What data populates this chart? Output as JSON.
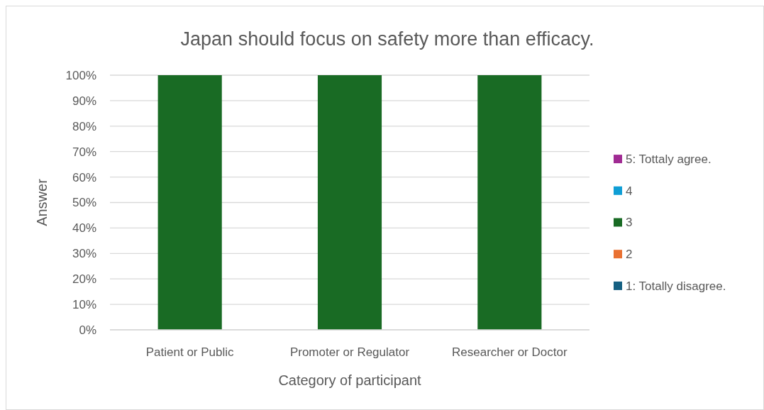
{
  "chart_data": {
    "type": "bar",
    "title": "Japan should focus on safety more than efficacy.",
    "xlabel": "Category of participant",
    "ylabel": "Answer",
    "categories": [
      "Patient or Public",
      "Promoter or Regulator",
      "Researcher or Doctor"
    ],
    "series": [
      {
        "name": "1: Totally disagree.",
        "color": "#156082",
        "values": [
          0,
          0,
          0
        ]
      },
      {
        "name": "2",
        "color": "#e97132",
        "values": [
          0,
          0,
          0
        ]
      },
      {
        "name": "3",
        "color": "#196b24",
        "values": [
          100,
          100,
          100
        ]
      },
      {
        "name": "4",
        "color": "#0f9ed5",
        "values": [
          0,
          0,
          0
        ]
      },
      {
        "name": "5: Tottaly agree.",
        "color": "#a02b93",
        "values": [
          0,
          0,
          0
        ]
      }
    ],
    "stacked": true,
    "ylim": [
      0,
      100
    ],
    "yticks": [
      {
        "value": 0,
        "label": "0%"
      },
      {
        "value": 10,
        "label": "10%"
      },
      {
        "value": 20,
        "label": "20%"
      },
      {
        "value": 30,
        "label": "30%"
      },
      {
        "value": 40,
        "label": "40%"
      },
      {
        "value": 50,
        "label": "50%"
      },
      {
        "value": 60,
        "label": "60%"
      },
      {
        "value": 70,
        "label": "70%"
      },
      {
        "value": 80,
        "label": "80%"
      },
      {
        "value": 90,
        "label": "90%"
      },
      {
        "value": 100,
        "label": "100%"
      }
    ],
    "grid": "y",
    "legend": "right"
  }
}
